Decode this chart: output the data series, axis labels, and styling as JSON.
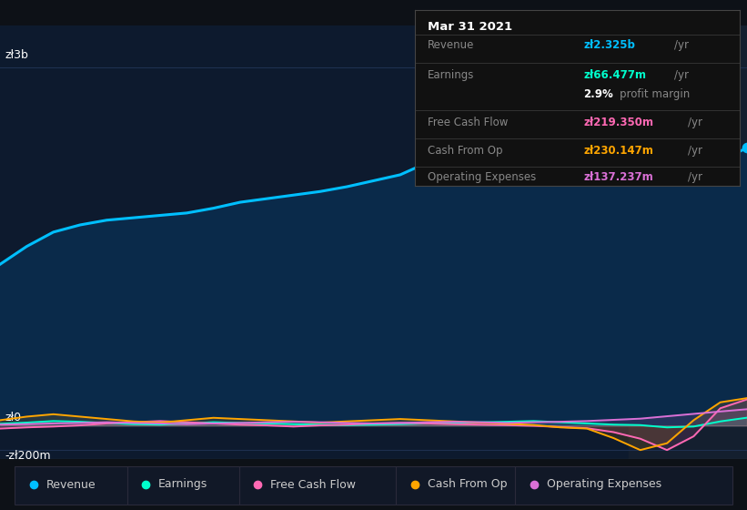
{
  "bg_color": "#0d1117",
  "plot_bg_color": "#0d1a2e",
  "ylabel_top": "zł3b",
  "ylabel_mid": "zł0",
  "ylabel_bot": "-zł200m",
  "tooltip": {
    "title": "Mar 31 2021",
    "revenue_label": "Revenue",
    "revenue_value": "zł2.325b",
    "earnings_label": "Earnings",
    "earnings_value": "zł66.477m",
    "profit_pct": "2.9%",
    "profit_label": "profit margin",
    "fcf_label": "Free Cash Flow",
    "fcf_value": "zł219.350m",
    "cfo_label": "Cash From Op",
    "cfo_value": "zł230.147m",
    "opex_label": "Operating Expenses",
    "opex_value": "zł137.237m",
    "per_yr": "/yr"
  },
  "tooltip_colors": {
    "revenue": "#00bfff",
    "earnings": "#00ffcc",
    "fcf": "#ff69b4",
    "cfo": "#ffa500",
    "opex": "#da70d6"
  },
  "legend": [
    {
      "label": "Revenue",
      "color": "#00bfff"
    },
    {
      "label": "Earnings",
      "color": "#00ffcc"
    },
    {
      "label": "Free Cash Flow",
      "color": "#ff69b4"
    },
    {
      "label": "Cash From Op",
      "color": "#ffa500"
    },
    {
      "label": "Operating Expenses",
      "color": "#da70d6"
    }
  ],
  "revenue_color": "#00bfff",
  "revenue_fill": "#0a2a4a",
  "earnings_color": "#00ffcc",
  "fcf_color": "#ff69b4",
  "cfo_color": "#ffa500",
  "opex_color": "#da70d6",
  "grid_color": "#1e3050",
  "divider_color": "#333333",
  "label_color": "#888888",
  "tick_color": "#aaaaaa"
}
